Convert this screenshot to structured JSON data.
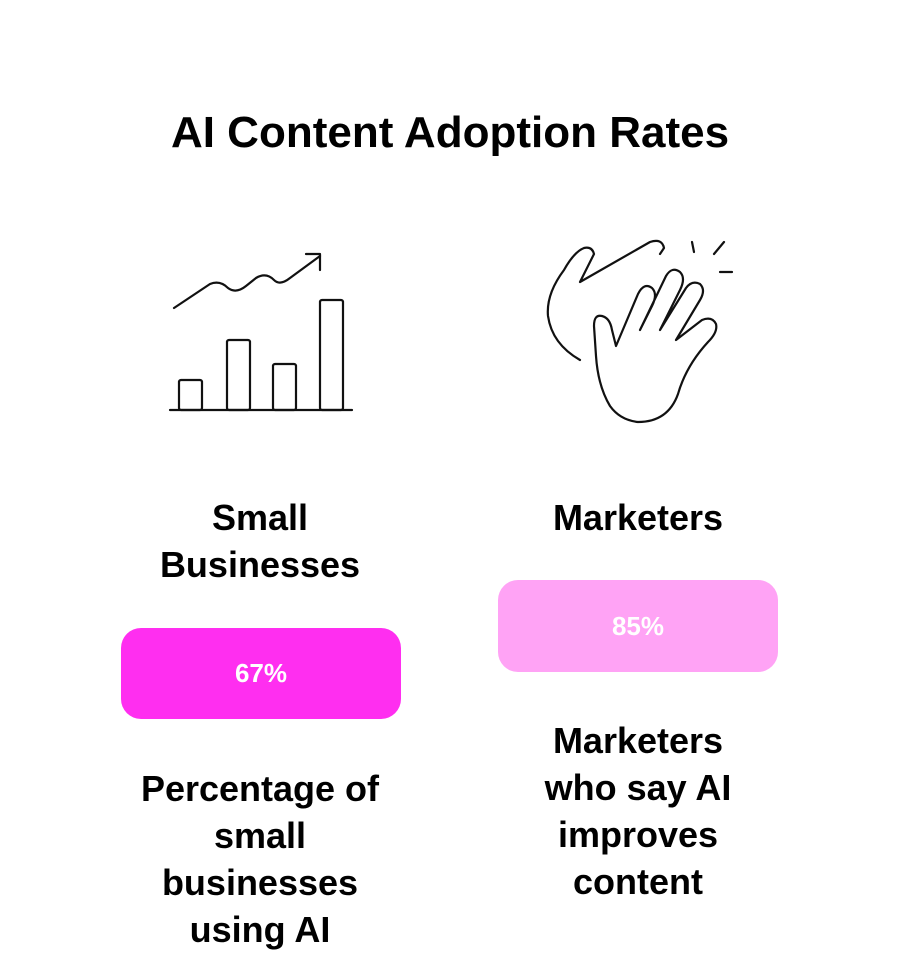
{
  "title": "AI Content Adoption Rates",
  "cards": [
    {
      "label": "Small Businesses",
      "value": "67%",
      "description": "Percentage of small businesses using AI"
    },
    {
      "label": "Marketers",
      "value": "85%",
      "description": "Marketers who say AI improves content"
    }
  ]
}
